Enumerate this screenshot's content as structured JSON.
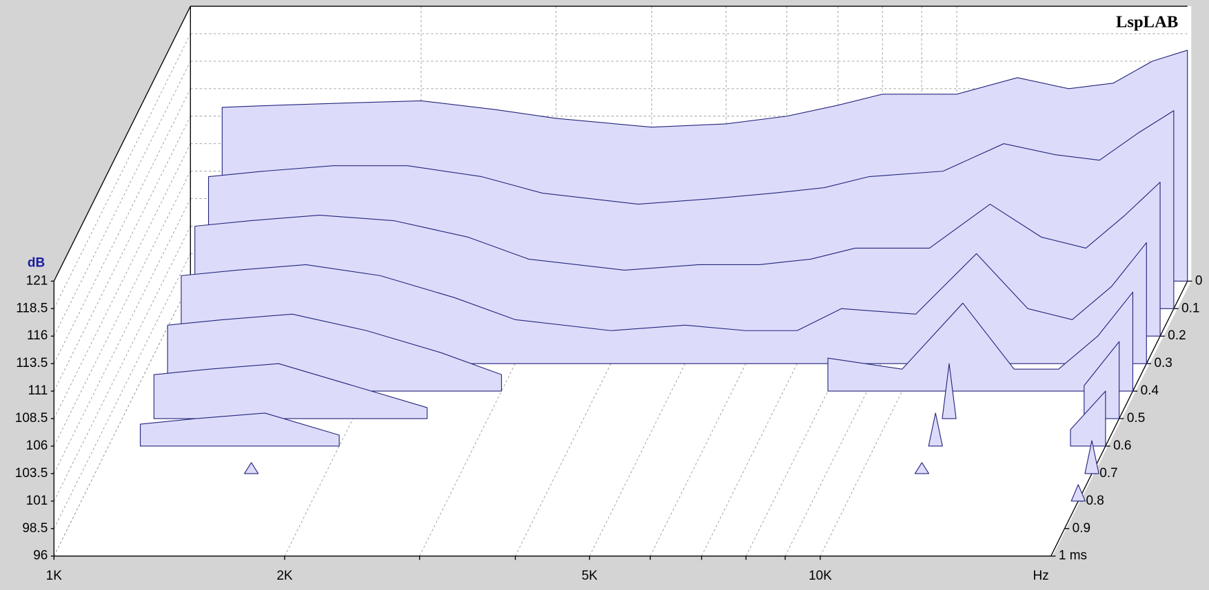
{
  "chart_data": {
    "type": "waterfall",
    "title": "LspLAB",
    "y_label": "dB",
    "x_label": "Hz",
    "log_x": true,
    "grid": true,
    "color": "#dcdcfa",
    "edge_color": "#23237d",
    "xlim": [
      1000,
      20000
    ],
    "xticks": [
      {
        "value": 1000,
        "label": "1K"
      },
      {
        "value": 2000,
        "label": "2K"
      },
      {
        "value": 5000,
        "label": "5K"
      },
      {
        "value": 10000,
        "label": "10K"
      }
    ],
    "xminor": [
      3000,
      4000,
      6000,
      7000,
      8000,
      9000
    ],
    "ylim": [
      96,
      121
    ],
    "yticks": [
      96,
      98.5,
      101,
      103.5,
      106,
      108.5,
      111,
      113.5,
      116,
      118.5,
      121
    ],
    "zlim": [
      0,
      1
    ],
    "zticks": [
      0,
      0.1,
      0.2,
      0.3,
      0.4,
      0.5,
      0.6,
      0.7,
      0.8,
      0.9,
      {
        "value": 1,
        "label": "1 ms"
      }
    ],
    "x": [
      1100,
      1300,
      1600,
      2000,
      2500,
      3000,
      4000,
      5000,
      6000,
      7000,
      8000,
      10000,
      12000,
      14000,
      16000,
      18000,
      20000
    ],
    "series": [
      {
        "t": 0,
        "values": [
          111.8,
          112,
          112.2,
          112.4,
          111.6,
          110.8,
          110,
          110.3,
          111,
          112,
          113,
          113,
          114.5,
          113.5,
          114,
          116,
          117
        ]
      },
      {
        "t": 0.1,
        "values": [
          108,
          108.5,
          109,
          109,
          108,
          106.5,
          105.5,
          106,
          106.5,
          107,
          108,
          108.5,
          111,
          110,
          109.5,
          112,
          114
        ]
      },
      {
        "t": 0.2,
        "values": [
          106,
          106.5,
          107,
          106.5,
          105,
          103,
          102,
          102.5,
          102.5,
          103,
          104,
          104,
          108,
          105,
          104,
          107,
          110
        ]
      },
      {
        "t": 0.3,
        "values": [
          104,
          104.5,
          105,
          104,
          102,
          100,
          99,
          99.5,
          99,
          99,
          101,
          100.5,
          106,
          101,
          100,
          103,
          107
        ]
      },
      {
        "t": 0.4,
        "values": [
          102,
          102.5,
          103,
          101.5,
          99.5,
          97.5,
          null,
          null,
          null,
          null,
          99,
          98,
          104,
          98,
          98,
          101,
          105
        ]
      },
      {
        "t": 0.5,
        "values": [
          100,
          100.5,
          101,
          99,
          97,
          null,
          null,
          null,
          null,
          null,
          null,
          null,
          101,
          null,
          null,
          99,
          103
        ]
      },
      {
        "t": 0.6,
        "values": [
          98,
          98.5,
          99,
          97,
          null,
          null,
          null,
          null,
          null,
          null,
          null,
          null,
          99,
          null,
          null,
          97.5,
          101
        ]
      },
      {
        "t": 0.7,
        "values": [
          null,
          null,
          97,
          null,
          null,
          null,
          null,
          null,
          null,
          null,
          null,
          null,
          97,
          null,
          null,
          null,
          99
        ]
      },
      {
        "t": 0.8,
        "values": [
          null,
          null,
          null,
          null,
          null,
          null,
          null,
          null,
          null,
          null,
          null,
          null,
          null,
          null,
          null,
          null,
          97.5
        ]
      }
    ]
  }
}
